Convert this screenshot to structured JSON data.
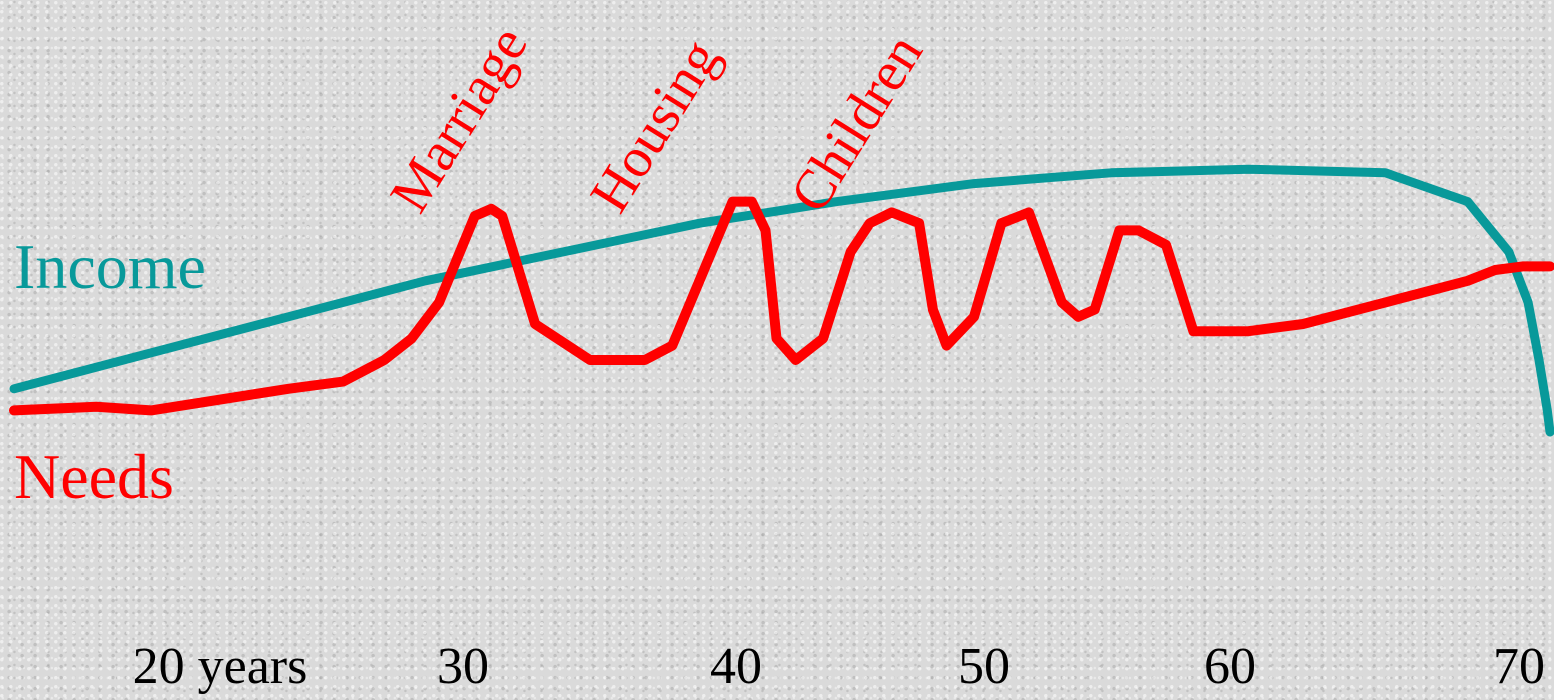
{
  "chart_data": {
    "type": "line",
    "xlim": [
      15,
      71
    ],
    "ylim": [
      0,
      10
    ],
    "x_ticks": [
      {
        "value": 20,
        "label": "20 years"
      },
      {
        "value": 30,
        "label": "30"
      },
      {
        "value": 40,
        "label": "40"
      },
      {
        "value": 50,
        "label": "50"
      },
      {
        "value": 60,
        "label": "60"
      },
      {
        "value": 70,
        "label": "70"
      }
    ],
    "series": [
      {
        "name": "Income",
        "color": "#08999a",
        "x": [
          15,
          20,
          25,
          30,
          35,
          40,
          45,
          50,
          55,
          60,
          65,
          68,
          69.5,
          70.2,
          70.6,
          70.9,
          71
        ],
        "y": [
          4.6,
          5.1,
          5.6,
          6.1,
          6.5,
          6.9,
          7.2,
          7.45,
          7.6,
          7.65,
          7.6,
          7.2,
          6.5,
          5.8,
          5.0,
          4.3,
          4.0
        ]
      },
      {
        "name": "Needs",
        "color": "#ff0000",
        "x": [
          15,
          18,
          20,
          25,
          27,
          28.5,
          29.5,
          30.5,
          31.8,
          32.4,
          32.8,
          34,
          36,
          37,
          38,
          39,
          41.2,
          41.9,
          42.4,
          42.8,
          43.5,
          44.5,
          45.5,
          46.2,
          47,
          48,
          48.5,
          49,
          50,
          51,
          52,
          53.2,
          53.8,
          54.4,
          55.3,
          56,
          57,
          58,
          60,
          62,
          65,
          68,
          69,
          70,
          71
        ],
        "y": [
          4.3,
          4.35,
          4.3,
          4.6,
          4.7,
          5.0,
          5.3,
          5.8,
          7.0,
          7.1,
          7.0,
          5.5,
          5.0,
          5.0,
          5.0,
          5.2,
          7.2,
          7.2,
          6.8,
          5.3,
          5.0,
          5.3,
          6.5,
          6.9,
          7.05,
          6.9,
          5.7,
          5.2,
          5.6,
          6.9,
          7.05,
          5.8,
          5.6,
          5.7,
          6.8,
          6.8,
          6.6,
          5.4,
          5.4,
          5.5,
          5.8,
          6.1,
          6.25,
          6.3,
          6.3
        ]
      }
    ],
    "annotations": [
      {
        "text": "Marriage",
        "x": 31,
        "series": "Needs"
      },
      {
        "text": "Housing",
        "x": 38,
        "series": "Needs"
      },
      {
        "text": "Children",
        "x": 45,
        "series": "Needs"
      }
    ],
    "grid": false,
    "legend": "left, inline labels"
  }
}
